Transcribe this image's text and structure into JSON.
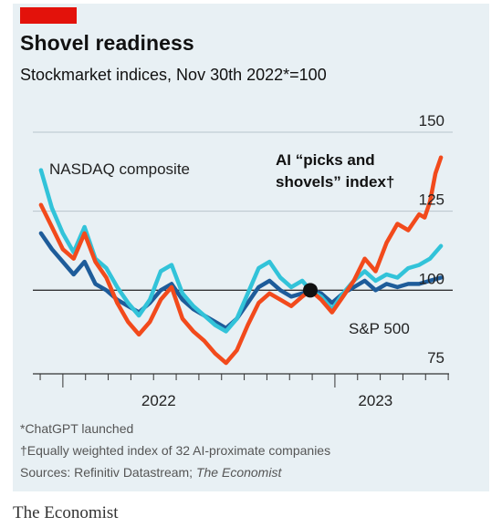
{
  "header": {
    "title": "Shovel readiness",
    "subtitle": "Stockmarket indices, Nov 30th 2022*=100"
  },
  "footer": {
    "note1": "*ChatGPT launched",
    "note2": "†Equally weighted index of 32 AI-proximate companies",
    "sources_prefix": "Sources: Refinitiv Datastream; ",
    "sources_source": "The Economist",
    "brand": "The Economist"
  },
  "colors": {
    "ai_index": "#f24a1c",
    "nasdaq": "#32c3d9",
    "sp500": "#1e5c9a",
    "red_tag": "#e3120b",
    "panel": "#e8f0f4"
  },
  "chart_data": {
    "type": "line",
    "title": "Shovel readiness",
    "subtitle": "Stockmarket indices, Nov 30th 2022*=100",
    "y_ticks": [
      75,
      100,
      125,
      150
    ],
    "y_tick_labels": [
      "75",
      "100",
      "125",
      "150"
    ],
    "ylim": [
      75,
      150
    ],
    "xlim": [
      2021.89,
      2023.42
    ],
    "x_tick_labels": [
      "2022",
      "2023"
    ],
    "reference_value": 100,
    "marker": {
      "x": 2022.91,
      "y": 100
    },
    "series": [
      {
        "name": "AI “picks and shovels” index†",
        "label_lines": [
          "AI “picks and",
          "shovels” index†"
        ],
        "x": [
          2021.92,
          2021.96,
          2022.0,
          2022.04,
          2022.08,
          2022.12,
          2022.16,
          2022.2,
          2022.24,
          2022.28,
          2022.32,
          2022.36,
          2022.4,
          2022.44,
          2022.48,
          2022.52,
          2022.56,
          2022.6,
          2022.64,
          2022.68,
          2022.72,
          2022.76,
          2022.8,
          2022.84,
          2022.88,
          2022.91,
          2022.95,
          2022.99,
          2023.03,
          2023.07,
          2023.11,
          2023.15,
          2023.19,
          2023.23,
          2023.27,
          2023.31,
          2023.33,
          2023.35,
          2023.37,
          2023.39
        ],
        "y": [
          127,
          120,
          113,
          110,
          118,
          109,
          104,
          96,
          90,
          86,
          90,
          97,
          101,
          91,
          87,
          84,
          80,
          77,
          81,
          89,
          96,
          99,
          97,
          95,
          98,
          100,
          97,
          93,
          98,
          103,
          110,
          106,
          115,
          121,
          119,
          124,
          123,
          128,
          137,
          142
        ]
      },
      {
        "name": "NASDAQ composite",
        "x": [
          2021.92,
          2021.96,
          2022.0,
          2022.04,
          2022.08,
          2022.12,
          2022.16,
          2022.2,
          2022.24,
          2022.28,
          2022.32,
          2022.36,
          2022.4,
          2022.44,
          2022.48,
          2022.52,
          2022.56,
          2022.6,
          2022.64,
          2022.68,
          2022.72,
          2022.76,
          2022.8,
          2022.84,
          2022.88,
          2022.91,
          2022.95,
          2022.99,
          2023.03,
          2023.07,
          2023.11,
          2023.15,
          2023.19,
          2023.23,
          2023.27,
          2023.31,
          2023.35,
          2023.39
        ],
        "y": [
          138,
          126,
          118,
          112,
          120,
          110,
          107,
          101,
          96,
          92,
          97,
          106,
          108,
          99,
          95,
          92,
          89,
          87,
          91,
          99,
          107,
          109,
          104,
          101,
          103,
          100,
          98,
          94,
          99,
          103,
          106,
          103,
          105,
          104,
          107,
          108,
          110,
          114
        ]
      },
      {
        "name": "S&P 500",
        "x": [
          2021.92,
          2021.96,
          2022.0,
          2022.04,
          2022.08,
          2022.12,
          2022.16,
          2022.2,
          2022.24,
          2022.28,
          2022.32,
          2022.36,
          2022.4,
          2022.44,
          2022.48,
          2022.52,
          2022.56,
          2022.6,
          2022.64,
          2022.68,
          2022.72,
          2022.76,
          2022.8,
          2022.84,
          2022.88,
          2022.91,
          2022.95,
          2022.99,
          2023.03,
          2023.07,
          2023.11,
          2023.15,
          2023.19,
          2023.23,
          2023.27,
          2023.31,
          2023.35,
          2023.39
        ],
        "y": [
          118,
          113,
          109,
          105,
          109,
          102,
          100,
          97,
          95,
          93,
          96,
          100,
          102,
          97,
          94,
          92,
          90,
          88,
          91,
          96,
          101,
          103,
          100,
          98,
          99,
          100,
          99,
          96,
          99,
          101,
          103,
          100,
          102,
          101,
          102,
          102,
          103,
          104
        ]
      }
    ]
  }
}
